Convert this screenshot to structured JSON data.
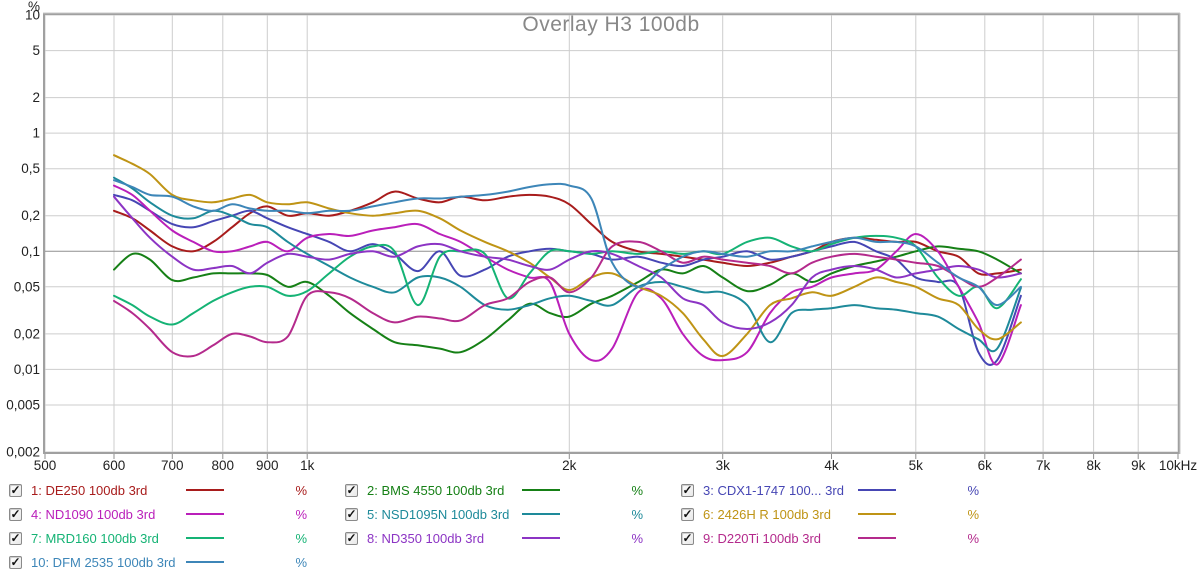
{
  "title": "Overlay H3 100db",
  "chart_data": {
    "type": "line",
    "title": "Overlay H3 100db",
    "x_axis": {
      "scale": "log",
      "min": 500,
      "max": 10000,
      "label_unit": "Hz",
      "ticks": [
        {
          "f": 500,
          "label": "500"
        },
        {
          "f": 600,
          "label": "600"
        },
        {
          "f": 700,
          "label": "700"
        },
        {
          "f": 800,
          "label": "800"
        },
        {
          "f": 900,
          "label": "900"
        },
        {
          "f": 1000,
          "label": "1k"
        },
        {
          "f": 2000,
          "label": "2k"
        },
        {
          "f": 3000,
          "label": "3k"
        },
        {
          "f": 4000,
          "label": "4k"
        },
        {
          "f": 5000,
          "label": "5k"
        },
        {
          "f": 6000,
          "label": "6k"
        },
        {
          "f": 7000,
          "label": "7k"
        },
        {
          "f": 8000,
          "label": "8k"
        },
        {
          "f": 9000,
          "label": "9k"
        },
        {
          "f": 10000,
          "label": "10kHz"
        }
      ]
    },
    "y_axis": {
      "scale": "log",
      "min": 0.002,
      "max": 10,
      "unit": "%",
      "ticks": [
        {
          "v": 10,
          "label": "10"
        },
        {
          "v": 5,
          "label": "5"
        },
        {
          "v": 2,
          "label": "2"
        },
        {
          "v": 1,
          "label": "1"
        },
        {
          "v": 0.5,
          "label": "0,5"
        },
        {
          "v": 0.2,
          "label": "0,2"
        },
        {
          "v": 0.1,
          "label": "0,1",
          "major": true
        },
        {
          "v": 0.05,
          "label": "0,05"
        },
        {
          "v": 0.02,
          "label": "0,02"
        },
        {
          "v": 0.01,
          "label": "0,01"
        },
        {
          "v": 0.005,
          "label": "0,005"
        },
        {
          "v": 0.002,
          "label": "0,002"
        }
      ]
    },
    "grid": true,
    "frequencies": [
      600,
      630,
      660,
      700,
      740,
      780,
      820,
      860,
      900,
      950,
      1000,
      1060,
      1120,
      1190,
      1260,
      1340,
      1420,
      1500,
      1600,
      1700,
      1800,
      1900,
      2000,
      2120,
      2240,
      2400,
      2550,
      2700,
      2850,
      3000,
      3200,
      3400,
      3600,
      3800,
      4000,
      4250,
      4500,
      4750,
      5000,
      5300,
      5600,
      5900,
      6200,
      6600
    ],
    "series": [
      {
        "id": 1,
        "name": "DE250 100db 3rd",
        "color": "#a81c1c",
        "values": [
          0.22,
          0.19,
          0.15,
          0.11,
          0.1,
          0.12,
          0.16,
          0.21,
          0.24,
          0.2,
          0.21,
          0.2,
          0.22,
          0.26,
          0.32,
          0.28,
          0.26,
          0.29,
          0.27,
          0.29,
          0.3,
          0.29,
          0.25,
          0.17,
          0.12,
          0.1,
          0.095,
          0.09,
          0.085,
          0.08,
          0.075,
          0.08,
          0.09,
          0.1,
          0.12,
          0.13,
          0.125,
          0.12,
          0.12,
          0.1,
          0.09,
          0.065,
          0.065,
          0.07
        ]
      },
      {
        "id": 2,
        "name": "BMS 4550 100db 3rd",
        "color": "#168016",
        "values": [
          0.07,
          0.095,
          0.085,
          0.057,
          0.06,
          0.065,
          0.065,
          0.065,
          0.063,
          0.05,
          0.055,
          0.042,
          0.03,
          0.022,
          0.017,
          0.016,
          0.015,
          0.014,
          0.018,
          0.026,
          0.036,
          0.03,
          0.028,
          0.036,
          0.042,
          0.055,
          0.07,
          0.065,
          0.075,
          0.06,
          0.046,
          0.052,
          0.065,
          0.055,
          0.065,
          0.075,
          0.082,
          0.09,
          0.1,
          0.11,
          0.105,
          0.1,
          0.085,
          0.065
        ]
      },
      {
        "id": 3,
        "name": "CDX1-1747 100... 3rd",
        "color": "#4646b4",
        "values": [
          0.3,
          0.27,
          0.22,
          0.17,
          0.16,
          0.18,
          0.2,
          0.22,
          0.19,
          0.16,
          0.14,
          0.12,
          0.1,
          0.115,
          0.095,
          0.068,
          0.1,
          0.062,
          0.07,
          0.09,
          0.1,
          0.105,
          0.1,
          0.095,
          0.085,
          0.09,
          0.08,
          0.075,
          0.085,
          0.09,
          0.1,
          0.085,
          0.09,
          0.1,
          0.11,
          0.12,
          0.1,
          0.085,
          0.06,
          0.055,
          0.05,
          0.014,
          0.012,
          0.042
        ]
      },
      {
        "id": 4,
        "name": "ND1090 100db 3rd",
        "color": "#ba1fba",
        "values": [
          0.36,
          0.3,
          0.22,
          0.15,
          0.12,
          0.1,
          0.1,
          0.11,
          0.12,
          0.1,
          0.13,
          0.14,
          0.135,
          0.15,
          0.16,
          0.17,
          0.14,
          0.12,
          0.09,
          0.07,
          0.06,
          0.055,
          0.02,
          0.012,
          0.015,
          0.045,
          0.04,
          0.02,
          0.013,
          0.012,
          0.014,
          0.03,
          0.045,
          0.05,
          0.06,
          0.065,
          0.07,
          0.1,
          0.14,
          0.1,
          0.05,
          0.025,
          0.011,
          0.035
        ]
      },
      {
        "id": 5,
        "name": "NSD1095N 100db 3rd",
        "color": "#1e8a9a",
        "values": [
          0.42,
          0.34,
          0.26,
          0.2,
          0.19,
          0.22,
          0.2,
          0.17,
          0.16,
          0.12,
          0.095,
          0.075,
          0.06,
          0.05,
          0.045,
          0.06,
          0.06,
          0.05,
          0.035,
          0.032,
          0.035,
          0.04,
          0.042,
          0.038,
          0.035,
          0.05,
          0.055,
          0.05,
          0.045,
          0.045,
          0.035,
          0.017,
          0.03,
          0.032,
          0.033,
          0.035,
          0.033,
          0.032,
          0.03,
          0.028,
          0.022,
          0.018,
          0.015,
          0.049
        ]
      },
      {
        "id": 6,
        "name": "2426H R 100db 3rd",
        "color": "#bf9415",
        "values": [
          0.65,
          0.55,
          0.45,
          0.3,
          0.27,
          0.26,
          0.28,
          0.3,
          0.26,
          0.25,
          0.26,
          0.23,
          0.21,
          0.2,
          0.21,
          0.22,
          0.19,
          0.15,
          0.12,
          0.1,
          0.08,
          0.06,
          0.047,
          0.06,
          0.065,
          0.05,
          0.042,
          0.03,
          0.018,
          0.013,
          0.02,
          0.035,
          0.04,
          0.045,
          0.042,
          0.05,
          0.06,
          0.055,
          0.05,
          0.04,
          0.035,
          0.022,
          0.018,
          0.025
        ]
      },
      {
        "id": 7,
        "name": "MRD160 100db 3rd",
        "color": "#15b375",
        "values": [
          0.042,
          0.035,
          0.028,
          0.024,
          0.03,
          0.038,
          0.045,
          0.05,
          0.05,
          0.042,
          0.046,
          0.065,
          0.09,
          0.11,
          0.1,
          0.035,
          0.09,
          0.1,
          0.095,
          0.04,
          0.065,
          0.1,
          0.1,
          0.095,
          0.1,
          0.095,
          0.1,
          0.095,
          0.1,
          0.095,
          0.12,
          0.13,
          0.11,
          0.1,
          0.115,
          0.13,
          0.135,
          0.13,
          0.11,
          0.06,
          0.042,
          0.05,
          0.033,
          0.058
        ]
      },
      {
        "id": 8,
        "name": "ND350 100db 3rd",
        "color": "#8c34c4",
        "values": [
          0.29,
          0.19,
          0.13,
          0.09,
          0.07,
          0.072,
          0.075,
          0.065,
          0.08,
          0.095,
          0.09,
          0.085,
          0.095,
          0.1,
          0.09,
          0.11,
          0.115,
          0.1,
          0.09,
          0.085,
          0.075,
          0.07,
          0.085,
          0.1,
          0.095,
          0.075,
          0.06,
          0.04,
          0.035,
          0.025,
          0.022,
          0.025,
          0.035,
          0.06,
          0.07,
          0.075,
          0.07,
          0.06,
          0.065,
          0.07,
          0.075,
          0.07,
          0.06,
          0.065
        ]
      },
      {
        "id": 9,
        "name": "D220Ti 100db 3rd",
        "color": "#b42a8c",
        "values": [
          0.038,
          0.03,
          0.022,
          0.014,
          0.013,
          0.016,
          0.02,
          0.019,
          0.017,
          0.019,
          0.042,
          0.045,
          0.04,
          0.03,
          0.025,
          0.028,
          0.027,
          0.026,
          0.035,
          0.04,
          0.055,
          0.06,
          0.045,
          0.06,
          0.11,
          0.12,
          0.1,
          0.08,
          0.09,
          0.085,
          0.08,
          0.075,
          0.065,
          0.08,
          0.09,
          0.095,
          0.09,
          0.085,
          0.08,
          0.075,
          0.06,
          0.05,
          0.06,
          0.085
        ]
      },
      {
        "id": 10,
        "name": "DFM 2535 100db 3rd",
        "color": "#3d86b8",
        "values": [
          0.4,
          0.35,
          0.3,
          0.29,
          0.24,
          0.22,
          0.25,
          0.23,
          0.22,
          0.22,
          0.21,
          0.22,
          0.22,
          0.24,
          0.26,
          0.28,
          0.28,
          0.29,
          0.3,
          0.32,
          0.35,
          0.37,
          0.36,
          0.28,
          0.08,
          0.05,
          0.07,
          0.09,
          0.1,
          0.095,
          0.09,
          0.1,
          0.1,
          0.11,
          0.12,
          0.13,
          0.12,
          0.12,
          0.11,
          0.08,
          0.06,
          0.05,
          0.035,
          0.05
        ]
      }
    ]
  },
  "legend": {
    "items": [
      {
        "label": "1: DE250 100db 3rd",
        "unit": "%",
        "checked": true,
        "color": "#a81c1c"
      },
      {
        "label": "2: BMS 4550 100db 3rd",
        "unit": "%",
        "checked": true,
        "color": "#168016"
      },
      {
        "label": "3: CDX1-1747 100... 3rd",
        "unit": "%",
        "checked": true,
        "color": "#4646b4"
      },
      {
        "label": "4: ND1090 100db 3rd",
        "unit": "%",
        "checked": true,
        "color": "#ba1fba"
      },
      {
        "label": "5: NSD1095N 100db 3rd",
        "unit": "%",
        "checked": true,
        "color": "#1e8a9a"
      },
      {
        "label": "6: 2426H R 100db 3rd",
        "unit": "%",
        "checked": true,
        "color": "#bf9415"
      },
      {
        "label": "7: MRD160 100db 3rd",
        "unit": "%",
        "checked": true,
        "color": "#15b375"
      },
      {
        "label": "8: ND350 100db 3rd",
        "unit": "%",
        "checked": true,
        "color": "#8c34c4"
      },
      {
        "label": "9: D220Ti 100db 3rd",
        "unit": "%",
        "checked": true,
        "color": "#b42a8c"
      },
      {
        "label": "10: DFM 2535 100db 3rd",
        "unit": "%",
        "checked": true,
        "color": "#3d86b8"
      }
    ],
    "checkmark": "✓"
  },
  "style": {
    "grid_color": "#cdcdcd",
    "grid_major_color": "#8f8f8f",
    "frame_color": "#a0a0a0",
    "axis_text_color": "#222222",
    "title_color": "#888888"
  }
}
